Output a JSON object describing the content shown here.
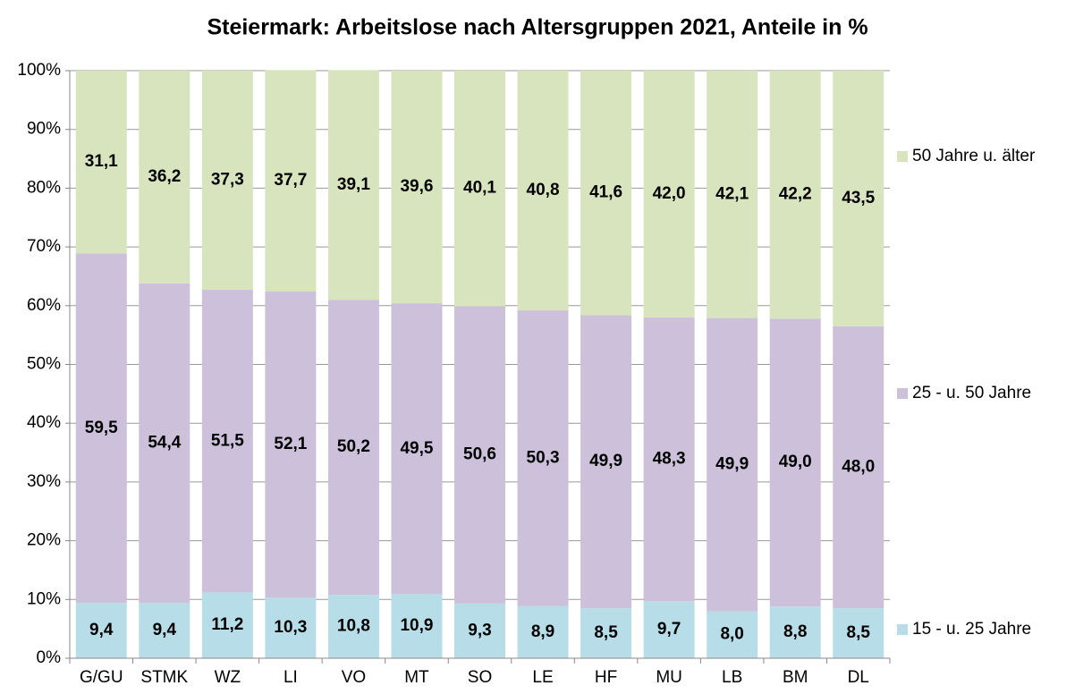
{
  "chart_data": {
    "type": "stacked_bar",
    "title": "Steiermark: Arbeitslose nach Altersgruppen 2021, Anteile in %",
    "categories": [
      "G/GU",
      "STMK",
      "WZ",
      "LI",
      "VO",
      "MT",
      "SO",
      "LE",
      "HF",
      "MU",
      "LB",
      "BM",
      "DL"
    ],
    "series": [
      {
        "name": "15 - u. 25 Jahre",
        "color": "#b7dee8",
        "values": [
          9.4,
          9.4,
          11.2,
          10.3,
          10.8,
          10.9,
          9.3,
          8.9,
          8.5,
          9.7,
          8.0,
          8.8,
          8.5
        ],
        "value_labels": [
          "9,4",
          "9,4",
          "11,2",
          "10,3",
          "10,8",
          "10,9",
          "9,3",
          "8,9",
          "8,5",
          "9,7",
          "8,0",
          "8,8",
          "8,5"
        ]
      },
      {
        "name": "25 - u. 50 Jahre",
        "color": "#ccc0da",
        "values": [
          59.5,
          54.4,
          51.5,
          52.1,
          50.2,
          49.5,
          50.6,
          50.3,
          49.9,
          48.3,
          49.9,
          49.0,
          48.0
        ],
        "value_labels": [
          "59,5",
          "54,4",
          "51,5",
          "52,1",
          "50,2",
          "49,5",
          "50,6",
          "50,3",
          "49,9",
          "48,3",
          "49,9",
          "49,0",
          "48,0"
        ]
      },
      {
        "name": "50 Jahre u. älter",
        "color": "#d7e4bd",
        "values": [
          31.1,
          36.2,
          37.3,
          37.7,
          39.1,
          39.6,
          40.1,
          40.8,
          41.6,
          42.0,
          42.1,
          42.2,
          43.5
        ],
        "value_labels": [
          "31,1",
          "36,2",
          "37,3",
          "37,7",
          "39,1",
          "39,6",
          "40,1",
          "40,8",
          "41,6",
          "42,0",
          "42,1",
          "42,2",
          "43,5"
        ]
      }
    ],
    "ylim": [
      0,
      100
    ],
    "yticks": [
      {
        "value": 0,
        "label": "0%"
      },
      {
        "value": 10,
        "label": "10%"
      },
      {
        "value": 20,
        "label": "20%"
      },
      {
        "value": 30,
        "label": "30%"
      },
      {
        "value": 40,
        "label": "40%"
      },
      {
        "value": 50,
        "label": "50%"
      },
      {
        "value": 60,
        "label": "60%"
      },
      {
        "value": 70,
        "label": "70%"
      },
      {
        "value": 80,
        "label": "80%"
      },
      {
        "value": 90,
        "label": "90%"
      },
      {
        "value": 100,
        "label": "100%"
      }
    ],
    "grid": true,
    "legend": "right"
  }
}
